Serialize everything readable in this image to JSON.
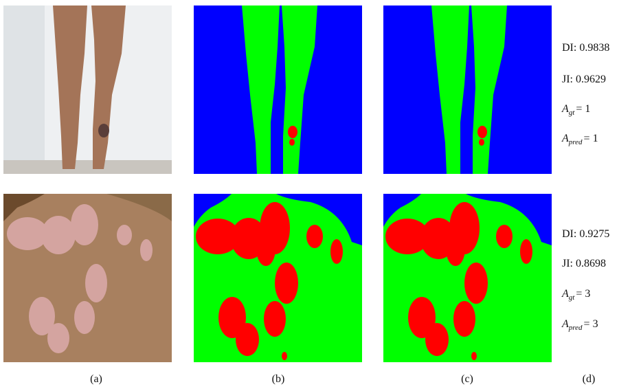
{
  "rows": [
    {
      "dice": "DI: 0.9838",
      "jaccard": "JI: 0.9629",
      "a_gt": {
        "symbol": "A",
        "subscript": "gt",
        "rest": "= 1"
      },
      "a_pred": {
        "symbol": "A",
        "subscript": "pred",
        "rest": "= 1"
      }
    },
    {
      "dice": "DI: 0.9275",
      "jaccard": "JI: 0.8698",
      "a_gt": {
        "symbol": "A",
        "subscript": "gt",
        "rest": "= 3"
      },
      "a_pred": {
        "symbol": "A",
        "subscript": "pred",
        "rest": "= 3"
      }
    }
  ],
  "panel_labels": [
    "(a)",
    "(b)",
    "(c)",
    "(d)"
  ]
}
